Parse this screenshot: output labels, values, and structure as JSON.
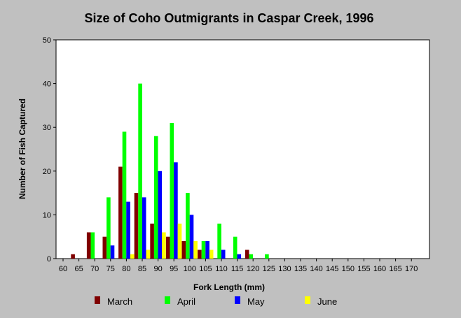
{
  "chart_data": {
    "type": "bar",
    "title": "Size of Coho Outmigrants in Caspar Creek, 1996",
    "xlabel": "Fork Length (mm)",
    "ylabel": "Number of Fish Captured",
    "ylim": [
      0,
      50
    ],
    "yticks": [
      0,
      10,
      20,
      30,
      40,
      50
    ],
    "categories": [
      "60",
      "65",
      "70",
      "75",
      "80",
      "85",
      "90",
      "95",
      "100",
      "105",
      "110",
      "115",
      "120",
      "125",
      "130",
      "135",
      "140",
      "145",
      "150",
      "155",
      "160",
      "165",
      "170"
    ],
    "series": [
      {
        "name": "March",
        "color": "#800000",
        "values": [
          0,
          1,
          6,
          5,
          21,
          15,
          8,
          5,
          4,
          2,
          0,
          0,
          2,
          0,
          0,
          0,
          0,
          0,
          0,
          0,
          0,
          0,
          0
        ]
      },
      {
        "name": "April",
        "color": "#00ff00",
        "values": [
          0,
          0,
          6,
          14,
          29,
          40,
          28,
          31,
          15,
          4,
          8,
          5,
          1,
          1,
          0,
          0,
          0,
          0,
          0,
          0,
          0,
          0,
          0
        ]
      },
      {
        "name": "May",
        "color": "#0000ff",
        "values": [
          0,
          0,
          0,
          3,
          13,
          14,
          20,
          22,
          10,
          4,
          2,
          1,
          0,
          0,
          0,
          0,
          0,
          0,
          0,
          0,
          0,
          0,
          0
        ]
      },
      {
        "name": "June",
        "color": "#ffff00",
        "values": [
          0,
          0,
          0,
          0,
          1,
          2,
          6,
          8,
          4,
          2,
          0,
          0,
          0,
          0,
          0,
          0,
          0,
          0,
          0,
          0,
          0,
          0,
          0
        ]
      }
    ],
    "legend_position": "bottom",
    "grid": false
  }
}
